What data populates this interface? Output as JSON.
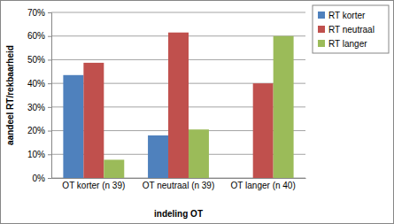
{
  "chart_data": {
    "type": "bar",
    "x_label": "indeling OT",
    "y_label": "aandeel RT/rekbaarheid",
    "categories": [
      "OT korter (n 39)",
      "OT neutraal (n 39)",
      "OT langer (n 40)"
    ],
    "series": [
      {
        "name": "RT korter",
        "color": "#4f81bd",
        "values": [
          43.5,
          18,
          0
        ]
      },
      {
        "name": "RT neutraal",
        "color": "#c0504d",
        "values": [
          48.7,
          61.5,
          40
        ]
      },
      {
        "name": "RT langer",
        "color": "#9bbb59",
        "values": [
          7.7,
          20.5,
          60
        ]
      }
    ],
    "ylim": [
      0,
      70
    ],
    "yticks": [
      {
        "value": 0,
        "label": "0%"
      },
      {
        "value": 10,
        "label": "10%"
      },
      {
        "value": 20,
        "label": "20%"
      },
      {
        "value": 30,
        "label": "30%"
      },
      {
        "value": 40,
        "label": "40%"
      },
      {
        "value": 50,
        "label": "50%"
      },
      {
        "value": 60,
        "label": "60%"
      },
      {
        "value": 70,
        "label": "70%"
      }
    ],
    "grid": true,
    "legend": "top-right"
  }
}
